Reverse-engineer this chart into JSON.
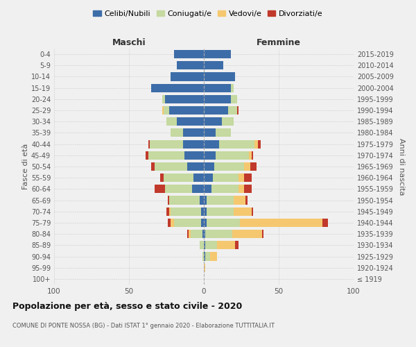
{
  "age_groups": [
    "100+",
    "95-99",
    "90-94",
    "85-89",
    "80-84",
    "75-79",
    "70-74",
    "65-69",
    "60-64",
    "55-59",
    "50-54",
    "45-49",
    "40-44",
    "35-39",
    "30-34",
    "25-29",
    "20-24",
    "15-19",
    "10-14",
    "5-9",
    "0-4"
  ],
  "birth_years": [
    "≤ 1919",
    "1920-1924",
    "1925-1929",
    "1930-1934",
    "1935-1939",
    "1940-1944",
    "1945-1949",
    "1950-1954",
    "1955-1959",
    "1960-1964",
    "1965-1969",
    "1970-1974",
    "1975-1979",
    "1980-1984",
    "1985-1989",
    "1990-1994",
    "1995-1999",
    "2000-2004",
    "2005-2009",
    "2010-2014",
    "2015-2019"
  ],
  "maschi": {
    "celibi": [
      0,
      0,
      0,
      0,
      1,
      2,
      2,
      3,
      8,
      7,
      11,
      13,
      14,
      14,
      18,
      23,
      26,
      35,
      22,
      18,
      20
    ],
    "coniugati": [
      0,
      0,
      1,
      3,
      8,
      18,
      20,
      20,
      18,
      20,
      22,
      24,
      22,
      8,
      7,
      4,
      2,
      0,
      0,
      0,
      0
    ],
    "vedovi": [
      0,
      0,
      0,
      0,
      1,
      2,
      1,
      0,
      0,
      0,
      0,
      0,
      0,
      0,
      0,
      1,
      0,
      0,
      0,
      0,
      0
    ],
    "divorziati": [
      0,
      0,
      0,
      0,
      1,
      2,
      2,
      1,
      7,
      2,
      2,
      2,
      1,
      0,
      0,
      0,
      0,
      0,
      0,
      0,
      0
    ]
  },
  "femmine": {
    "nubili": [
      0,
      0,
      1,
      1,
      1,
      2,
      2,
      2,
      5,
      6,
      7,
      8,
      10,
      8,
      12,
      16,
      18,
      18,
      21,
      13,
      18
    ],
    "coniugate": [
      0,
      0,
      3,
      8,
      18,
      22,
      18,
      18,
      18,
      17,
      20,
      22,
      24,
      10,
      8,
      6,
      4,
      2,
      0,
      0,
      0
    ],
    "vedove": [
      0,
      1,
      5,
      12,
      20,
      55,
      12,
      8,
      4,
      4,
      4,
      2,
      2,
      0,
      0,
      0,
      0,
      0,
      0,
      0,
      0
    ],
    "divorziate": [
      0,
      0,
      0,
      2,
      1,
      4,
      1,
      1,
      5,
      5,
      4,
      1,
      2,
      0,
      0,
      1,
      0,
      0,
      0,
      0,
      0
    ]
  },
  "colors": {
    "celibi": "#3d6da8",
    "coniugati": "#c5d9a0",
    "vedovi": "#f5c870",
    "divorziati": "#c0392b"
  },
  "title": "Popolazione per età, sesso e stato civile - 2020",
  "subtitle": "COMUNE DI PONTE NOSSA (BG) - Dati ISTAT 1° gennaio 2020 - Elaborazione TUTTITALIA.IT",
  "xlabel_left": "Maschi",
  "xlabel_right": "Femmine",
  "ylabel_left": "Fasce di età",
  "ylabel_right": "Anni di nascita",
  "xlim": 100,
  "bg_color": "#f0f0f0",
  "grid_color": "#cccccc",
  "legend_labels": [
    "Celibi/Nubili",
    "Coniugati/e",
    "Vedovi/e",
    "Divorziati/e"
  ]
}
